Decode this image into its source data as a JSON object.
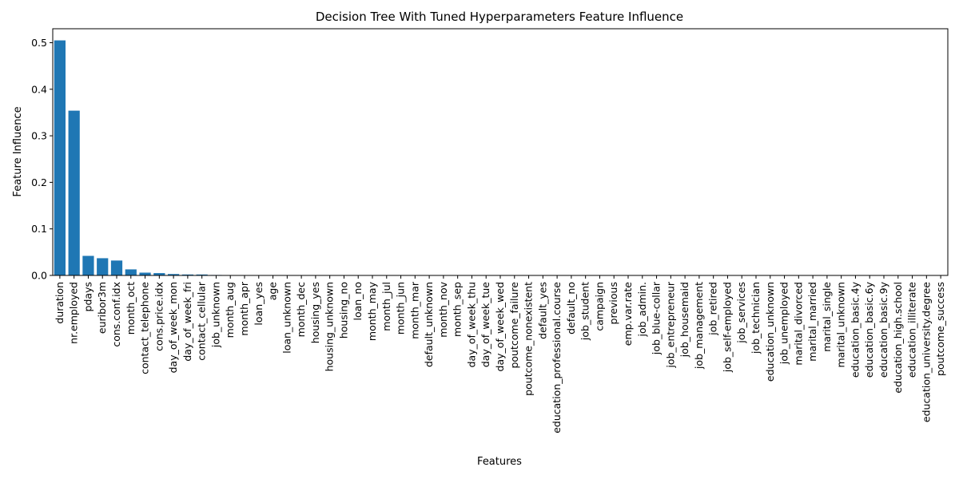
{
  "chart_data": {
    "type": "bar",
    "title": "Decision Tree With Tuned Hyperparameters Feature Influence",
    "xlabel": "Features",
    "ylabel": "Feature Influence",
    "ylim": [
      0,
      0.53
    ],
    "yticks": [
      0.0,
      0.1,
      0.2,
      0.3,
      0.4,
      0.5
    ],
    "ytick_labels": [
      "0.0",
      "0.1",
      "0.2",
      "0.3",
      "0.4",
      "0.5"
    ],
    "bar_color": "#1f77b4",
    "grid": false,
    "categories": [
      "duration",
      "nr.employed",
      "pdays",
      "euribor3m",
      "cons.conf.idx",
      "month_oct",
      "contact_telephone",
      "cons.price.idx",
      "day_of_week_mon",
      "day_of_week_fri",
      "contact_cellular",
      "job_unknown",
      "month_aug",
      "month_apr",
      "loan_yes",
      "age",
      "loan_unknown",
      "month_dec",
      "housing_yes",
      "housing_unknown",
      "housing_no",
      "loan_no",
      "month_may",
      "month_jul",
      "month_jun",
      "month_mar",
      "default_unknown",
      "month_nov",
      "month_sep",
      "day_of_week_thu",
      "day_of_week_tue",
      "day_of_week_wed",
      "poutcome_failure",
      "poutcome_nonexistent",
      "default_yes",
      "education_professional.course",
      "default_no",
      "job_student",
      "campaign",
      "previous",
      "emp.var.rate",
      "job_admin.",
      "job_blue-collar",
      "job_entrepreneur",
      "job_housemaid",
      "job_management",
      "job_retired",
      "job_self-employed",
      "job_services",
      "job_technician",
      "education_unknown",
      "job_unemployed",
      "marital_divorced",
      "marital_married",
      "marital_single",
      "marital_unknown",
      "education_basic.4y",
      "education_basic.6y",
      "education_basic.9y",
      "education_high.school",
      "education_illiterate",
      "education_university.degree",
      "poutcome_success"
    ],
    "values": [
      0.505,
      0.354,
      0.042,
      0.037,
      0.032,
      0.013,
      0.006,
      0.005,
      0.003,
      0.002,
      0.002,
      0.001,
      0.0005,
      0.0003,
      0.0002,
      0.0001,
      0,
      0,
      0,
      0,
      0,
      0,
      0,
      0,
      0,
      0,
      0,
      0,
      0,
      0,
      0,
      0,
      0,
      0,
      0,
      0,
      0,
      0,
      0,
      0,
      0,
      0,
      0,
      0,
      0,
      0,
      0,
      0,
      0,
      0,
      0,
      0,
      0,
      0,
      0,
      0,
      0,
      0,
      0,
      0,
      0,
      0,
      0
    ]
  }
}
